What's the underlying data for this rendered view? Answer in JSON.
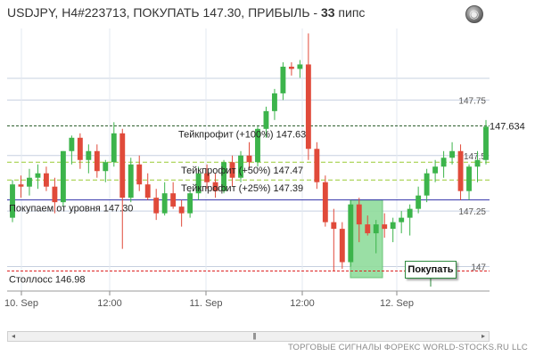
{
  "header": {
    "pair_info": "USDJPY, H4#223713, ПОКУПАТЬ 147.30, ПРИБЫЛЬ - ",
    "profit_value": "33",
    "profit_unit": " пипс"
  },
  "footer": {
    "text": "ТОРГОВЫЕ СИГНАЛЫ ФОРЕКС WORLD-STOCKS.RU LLC"
  },
  "buy_button": {
    "label": "Покупать"
  },
  "scrollbar": {
    "left": "◂",
    "right": "▸",
    "thumb": "|||"
  },
  "colors": {
    "up": "#3cb44b",
    "down": "#e04a3a",
    "buy_zone": "#90dc9c",
    "entry_line": "#3333aa",
    "stop_line": "#dd2222",
    "tp_line": "#99cc33"
  },
  "price_axis": {
    "labels": [
      {
        "value": 147.75,
        "text": "147.75"
      },
      {
        "value": 147.5,
        "text": "147.5"
      },
      {
        "value": 147.25,
        "text": "147.25"
      },
      {
        "value": 147.0,
        "text": "147"
      }
    ],
    "current_price": {
      "value": 147.634,
      "text": "147.634"
    }
  },
  "time_axis": [
    "10. Sep",
    "12:00",
    "11. Sep",
    "12:00",
    "12. Sep"
  ],
  "levels": [
    {
      "name": "tp-100",
      "value": 147.634,
      "text": "Тейкпрофит (+100%) 147.63",
      "style": "tp100"
    },
    {
      "name": "tp-50",
      "value": 147.47,
      "text": "Тейкпрофит (+50%) 147.47",
      "style": "tp"
    },
    {
      "name": "tp-25",
      "value": 147.39,
      "text": "Тейкпрофит (+25%) 147.39",
      "style": "tp"
    },
    {
      "name": "entry",
      "value": 147.3,
      "text": "Покупаем от уровня 147.30",
      "style": "entry"
    },
    {
      "name": "stop",
      "value": 146.98,
      "text": "Столлосс 146.98",
      "style": "stop"
    }
  ],
  "chart_data": {
    "type": "candlestick",
    "symbol": "USDJPY",
    "timeframe": "H4",
    "ylim": [
      146.89,
      148.08
    ],
    "candles": [
      {
        "o": 147.22,
        "h": 147.39,
        "l": 147.2,
        "c": 147.37
      },
      {
        "o": 147.37,
        "h": 147.41,
        "l": 147.31,
        "c": 147.36
      },
      {
        "o": 147.36,
        "h": 147.44,
        "l": 147.32,
        "c": 147.4
      },
      {
        "o": 147.4,
        "h": 147.46,
        "l": 147.35,
        "c": 147.42
      },
      {
        "o": 147.42,
        "h": 147.45,
        "l": 147.34,
        "c": 147.36
      },
      {
        "o": 147.36,
        "h": 147.4,
        "l": 147.24,
        "c": 147.29
      },
      {
        "o": 147.29,
        "h": 147.52,
        "l": 147.27,
        "c": 147.52
      },
      {
        "o": 147.52,
        "h": 147.59,
        "l": 147.46,
        "c": 147.58
      },
      {
        "o": 147.58,
        "h": 147.6,
        "l": 147.44,
        "c": 147.48
      },
      {
        "o": 147.48,
        "h": 147.55,
        "l": 147.42,
        "c": 147.52
      },
      {
        "o": 147.52,
        "h": 147.55,
        "l": 147.4,
        "c": 147.43
      },
      {
        "o": 147.43,
        "h": 147.48,
        "l": 147.38,
        "c": 147.47
      },
      {
        "o": 147.47,
        "h": 147.65,
        "l": 147.45,
        "c": 147.6
      },
      {
        "o": 147.6,
        "h": 147.62,
        "l": 147.08,
        "c": 147.31
      },
      {
        "o": 147.31,
        "h": 147.49,
        "l": 147.29,
        "c": 147.46
      },
      {
        "o": 147.46,
        "h": 147.5,
        "l": 147.34,
        "c": 147.37
      },
      {
        "o": 147.37,
        "h": 147.42,
        "l": 147.3,
        "c": 147.31
      },
      {
        "o": 147.31,
        "h": 147.35,
        "l": 147.21,
        "c": 147.24
      },
      {
        "o": 147.24,
        "h": 147.38,
        "l": 147.23,
        "c": 147.33
      },
      {
        "o": 147.33,
        "h": 147.38,
        "l": 147.26,
        "c": 147.27
      },
      {
        "o": 147.27,
        "h": 147.3,
        "l": 147.18,
        "c": 147.24
      },
      {
        "o": 147.24,
        "h": 147.34,
        "l": 147.22,
        "c": 147.33
      },
      {
        "o": 147.33,
        "h": 147.45,
        "l": 147.3,
        "c": 147.42
      },
      {
        "o": 147.42,
        "h": 147.46,
        "l": 147.35,
        "c": 147.38
      },
      {
        "o": 147.38,
        "h": 147.42,
        "l": 147.31,
        "c": 147.34
      },
      {
        "o": 147.34,
        "h": 147.48,
        "l": 147.33,
        "c": 147.47
      },
      {
        "o": 147.47,
        "h": 147.5,
        "l": 147.36,
        "c": 147.4
      },
      {
        "o": 147.4,
        "h": 147.52,
        "l": 147.38,
        "c": 147.5
      },
      {
        "o": 147.5,
        "h": 147.56,
        "l": 147.44,
        "c": 147.47
      },
      {
        "o": 147.47,
        "h": 147.63,
        "l": 147.45,
        "c": 147.62
      },
      {
        "o": 147.62,
        "h": 147.72,
        "l": 147.58,
        "c": 147.7
      },
      {
        "o": 147.7,
        "h": 147.8,
        "l": 147.66,
        "c": 147.78
      },
      {
        "o": 147.78,
        "h": 147.92,
        "l": 147.75,
        "c": 147.9
      },
      {
        "o": 147.9,
        "h": 147.92,
        "l": 147.86,
        "c": 147.89
      },
      {
        "o": 147.89,
        "h": 147.93,
        "l": 147.85,
        "c": 147.91
      },
      {
        "o": 147.91,
        "h": 148.05,
        "l": 147.48,
        "c": 147.53
      },
      {
        "o": 147.53,
        "h": 147.56,
        "l": 147.35,
        "c": 147.38
      },
      {
        "o": 147.38,
        "h": 147.41,
        "l": 147.18,
        "c": 147.2
      },
      {
        "o": 147.2,
        "h": 147.26,
        "l": 146.98,
        "c": 147.17
      },
      {
        "o": 147.17,
        "h": 147.2,
        "l": 146.99,
        "c": 147.02
      },
      {
        "o": 147.02,
        "h": 147.3,
        "l": 147.0,
        "c": 147.28
      },
      {
        "o": 147.28,
        "h": 147.31,
        "l": 147.11,
        "c": 147.19
      },
      {
        "o": 147.19,
        "h": 147.23,
        "l": 147.14,
        "c": 147.15
      },
      {
        "o": 147.15,
        "h": 147.21,
        "l": 147.06,
        "c": 147.19
      },
      {
        "o": 147.19,
        "h": 147.24,
        "l": 147.13,
        "c": 147.17
      },
      {
        "o": 147.17,
        "h": 147.22,
        "l": 147.11,
        "c": 147.2
      },
      {
        "o": 147.2,
        "h": 147.25,
        "l": 147.15,
        "c": 147.22
      },
      {
        "o": 147.22,
        "h": 147.28,
        "l": 147.14,
        "c": 147.26
      },
      {
        "o": 147.26,
        "h": 147.36,
        "l": 147.24,
        "c": 147.32
      },
      {
        "o": 147.32,
        "h": 147.44,
        "l": 147.29,
        "c": 147.42
      },
      {
        "o": 147.42,
        "h": 147.48,
        "l": 147.38,
        "c": 147.45
      },
      {
        "o": 147.45,
        "h": 147.52,
        "l": 147.4,
        "c": 147.49
      },
      {
        "o": 147.49,
        "h": 147.56,
        "l": 147.46,
        "c": 147.52
      },
      {
        "o": 147.52,
        "h": 147.55,
        "l": 147.3,
        "c": 147.34
      },
      {
        "o": 147.34,
        "h": 147.46,
        "l": 147.3,
        "c": 147.45
      },
      {
        "o": 147.45,
        "h": 147.52,
        "l": 147.38,
        "c": 147.48
      },
      {
        "o": 147.48,
        "h": 147.66,
        "l": 147.46,
        "c": 147.63
      }
    ]
  }
}
